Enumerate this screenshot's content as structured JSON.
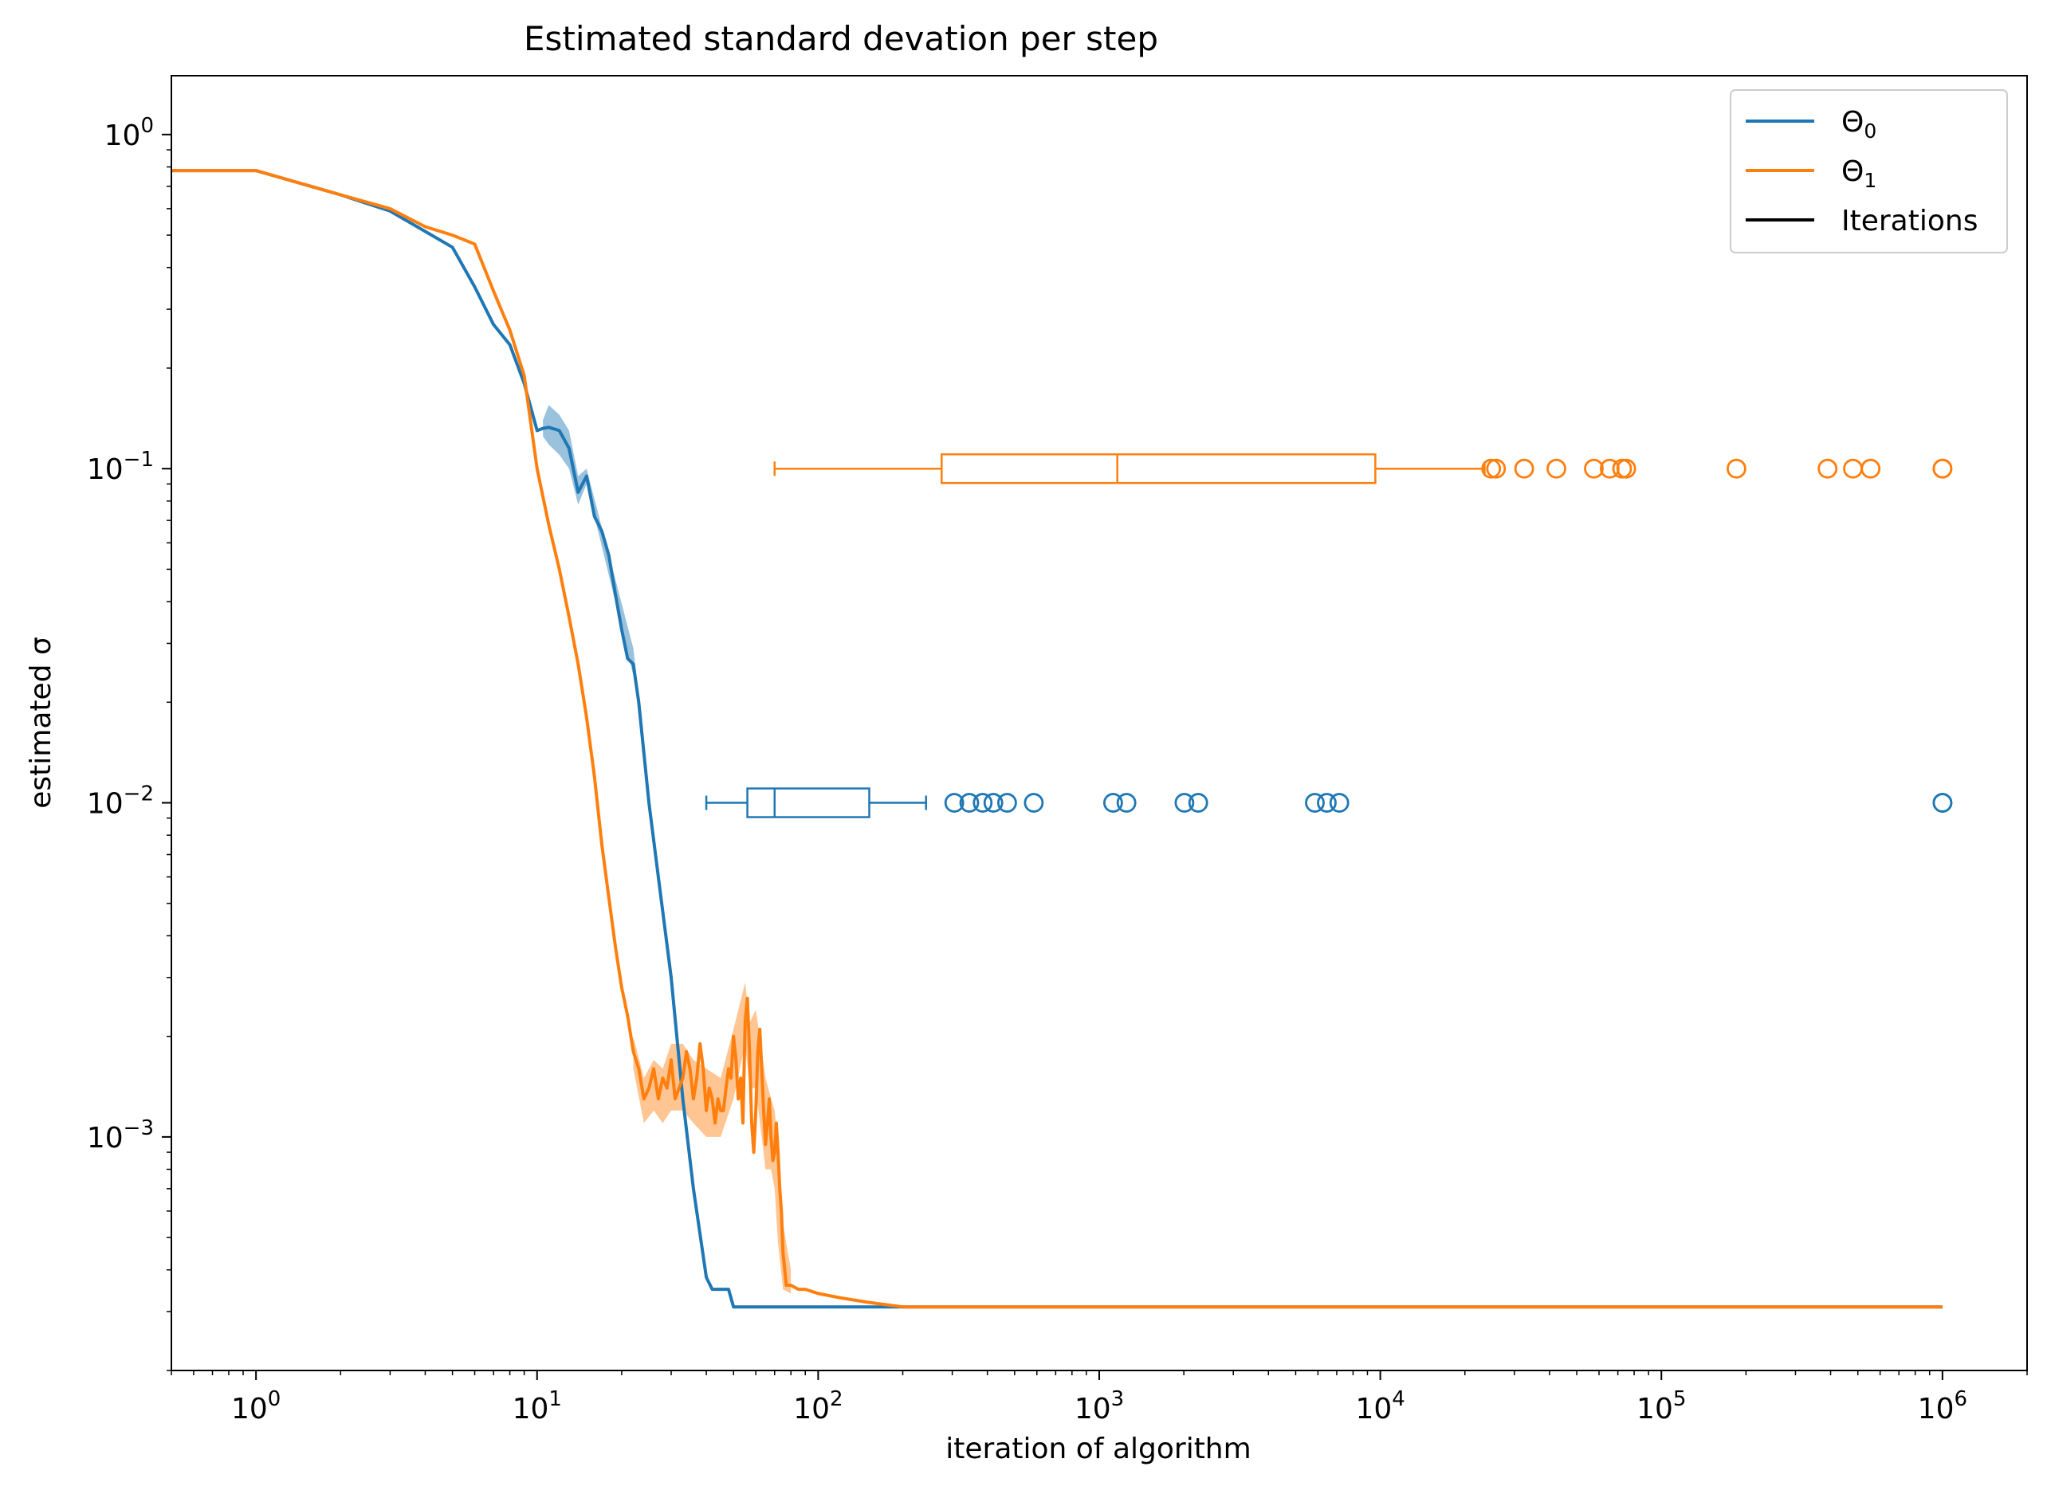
{
  "chart_data": {
    "type": "line",
    "title": "Estimated standard devation per step",
    "xlabel": "iteration of algorithm",
    "ylabel": "estimated σ",
    "xscale": "log",
    "yscale": "log",
    "xlim": [
      0.5,
      2000000
    ],
    "ylim": [
      0.0002,
      1.5
    ],
    "grid": false,
    "legend_placement": "top-right",
    "x_ticks": [
      {
        "base": "10",
        "exp": "0",
        "value": 1
      },
      {
        "base": "10",
        "exp": "1",
        "value": 10
      },
      {
        "base": "10",
        "exp": "2",
        "value": 100
      },
      {
        "base": "10",
        "exp": "3",
        "value": 1000
      },
      {
        "base": "10",
        "exp": "4",
        "value": 10000
      },
      {
        "base": "10",
        "exp": "5",
        "value": 100000
      },
      {
        "base": "10",
        "exp": "6",
        "value": 1000000
      }
    ],
    "y_ticks": [
      {
        "base": "10",
        "exp": "0",
        "value": 1
      },
      {
        "base": "10",
        "exp": "−1",
        "value": 0.1
      },
      {
        "base": "10",
        "exp": "−2",
        "value": 0.01
      },
      {
        "base": "10",
        "exp": "−3",
        "value": 0.001
      }
    ],
    "legend": [
      {
        "label": "Θ",
        "sub": "0",
        "color": "#1f77b4"
      },
      {
        "label": "Θ",
        "sub": "1",
        "color": "#ff7f0e"
      },
      {
        "label": "Iterations",
        "sub": "",
        "color": "#000000"
      }
    ],
    "series": [
      {
        "label": "Θ0",
        "color": "#1f77b4",
        "x": [
          0.5,
          1,
          2,
          3,
          5,
          6,
          7,
          8,
          9,
          10,
          10.5,
          11,
          12,
          13,
          14,
          15,
          16,
          17,
          18,
          19,
          20,
          21,
          22,
          23,
          25,
          27,
          30,
          33,
          36,
          40,
          42,
          45,
          48,
          50,
          60,
          80,
          100,
          150,
          200,
          300,
          500,
          1000,
          10000,
          100000,
          1000000
        ],
        "y": [
          0.78,
          0.78,
          0.66,
          0.59,
          0.46,
          0.35,
          0.27,
          0.235,
          0.18,
          0.13,
          0.132,
          0.133,
          0.13,
          0.115,
          0.085,
          0.095,
          0.072,
          0.065,
          0.055,
          0.042,
          0.033,
          0.027,
          0.026,
          0.02,
          0.01,
          0.006,
          0.003,
          0.0013,
          0.0007,
          0.00038,
          0.00035,
          0.00035,
          0.00035,
          0.00031,
          0.00031,
          0.00031,
          0.00031,
          0.00031,
          0.00031,
          0.00031,
          0.00031,
          0.00031,
          0.00031,
          0.00031,
          0.00031
        ],
        "band": {
          "x": [
            10.5,
            11,
            12,
            13,
            14,
            15,
            22,
            23
          ],
          "lower": [
            0.125,
            0.118,
            0.11,
            0.1,
            0.078,
            0.09,
            0.024,
            0.019
          ],
          "upper": [
            0.14,
            0.155,
            0.145,
            0.13,
            0.095,
            0.1,
            0.029,
            0.021
          ]
        }
      },
      {
        "label": "Θ1",
        "color": "#ff7f0e",
        "x": [
          0.5,
          1,
          2,
          3,
          4,
          5,
          6,
          7,
          8,
          9,
          10,
          11,
          12,
          13,
          14,
          15,
          16,
          17,
          18,
          19,
          20,
          21,
          22,
          23,
          24,
          25,
          26,
          27,
          28,
          29,
          30,
          31,
          32,
          33,
          34,
          35,
          36,
          37,
          38,
          39,
          40,
          41,
          42,
          43,
          44,
          45,
          46,
          47,
          48,
          49,
          50,
          51,
          52,
          53,
          54,
          55,
          56,
          57,
          58,
          59,
          60,
          61,
          62,
          63,
          64,
          65,
          66,
          67,
          68,
          69,
          70,
          71,
          72,
          73,
          74,
          75,
          77,
          80,
          85,
          90,
          100,
          120,
          150,
          200,
          300,
          1000,
          10000,
          100000,
          1000000
        ],
        "y": [
          0.78,
          0.78,
          0.66,
          0.6,
          0.53,
          0.5,
          0.47,
          0.34,
          0.26,
          0.19,
          0.1,
          0.068,
          0.05,
          0.036,
          0.026,
          0.018,
          0.012,
          0.0075,
          0.0052,
          0.0037,
          0.0028,
          0.0023,
          0.0018,
          0.0016,
          0.0013,
          0.0014,
          0.0016,
          0.0013,
          0.0015,
          0.0014,
          0.0017,
          0.0013,
          0.0014,
          0.0015,
          0.0018,
          0.0016,
          0.0013,
          0.0015,
          0.0019,
          0.0016,
          0.0012,
          0.0014,
          0.0013,
          0.0011,
          0.0013,
          0.0012,
          0.0012,
          0.0014,
          0.0016,
          0.0015,
          0.002,
          0.0017,
          0.0013,
          0.0015,
          0.0011,
          0.0022,
          0.0026,
          0.0018,
          0.0011,
          0.0009,
          0.0012,
          0.0018,
          0.0021,
          0.0016,
          0.0012,
          0.00095,
          0.0011,
          0.0013,
          0.001,
          0.00085,
          0.0009,
          0.0011,
          0.0009,
          0.0007,
          0.0006,
          0.00045,
          0.00036,
          0.00036,
          0.00035,
          0.00035,
          0.00034,
          0.00033,
          0.00032,
          0.00031,
          0.00031,
          0.00031,
          0.00031,
          0.00031,
          0.00031
        ],
        "band": {
          "x": [
            22,
            24,
            26,
            28,
            30,
            33,
            36,
            40,
            45,
            50,
            55,
            57,
            60,
            65,
            68,
            70,
            72,
            75,
            80
          ],
          "lower": [
            0.0016,
            0.0011,
            0.0012,
            0.0011,
            0.0012,
            0.0012,
            0.0011,
            0.001,
            0.001,
            0.0013,
            0.0019,
            0.0014,
            0.0014,
            0.0008,
            0.0008,
            0.0007,
            0.00048,
            0.00035,
            0.00034
          ],
          "upper": [
            0.002,
            0.0015,
            0.0017,
            0.0016,
            0.0019,
            0.0019,
            0.0017,
            0.0016,
            0.0015,
            0.0021,
            0.0029,
            0.0022,
            0.0024,
            0.0015,
            0.0013,
            0.0012,
            0.00095,
            0.00055,
            0.0004
          ]
        }
      }
    ],
    "boxplots": [
      {
        "label": "Θ0",
        "color": "#1f77b4",
        "position": 0.01,
        "whisker_low": 40,
        "q1": 56,
        "median": 70,
        "q3": 152,
        "whisker_high": 242,
        "outliers": [
          305,
          345,
          385,
          420,
          470,
          585,
          1120,
          1250,
          2010,
          2250,
          5850,
          6450,
          7150,
          1000000,
          1000000
        ]
      },
      {
        "label": "Θ1",
        "color": "#ff7f0e",
        "position": 0.1,
        "whisker_low": 70,
        "q1": 275,
        "median": 1160,
        "q3": 9600,
        "whisker_high": 23500,
        "outliers": [
          24800,
          25800,
          32500,
          42300,
          57500,
          65500,
          72500,
          75000,
          185000,
          390000,
          480000,
          555000,
          1000000,
          1000000
        ]
      }
    ]
  }
}
